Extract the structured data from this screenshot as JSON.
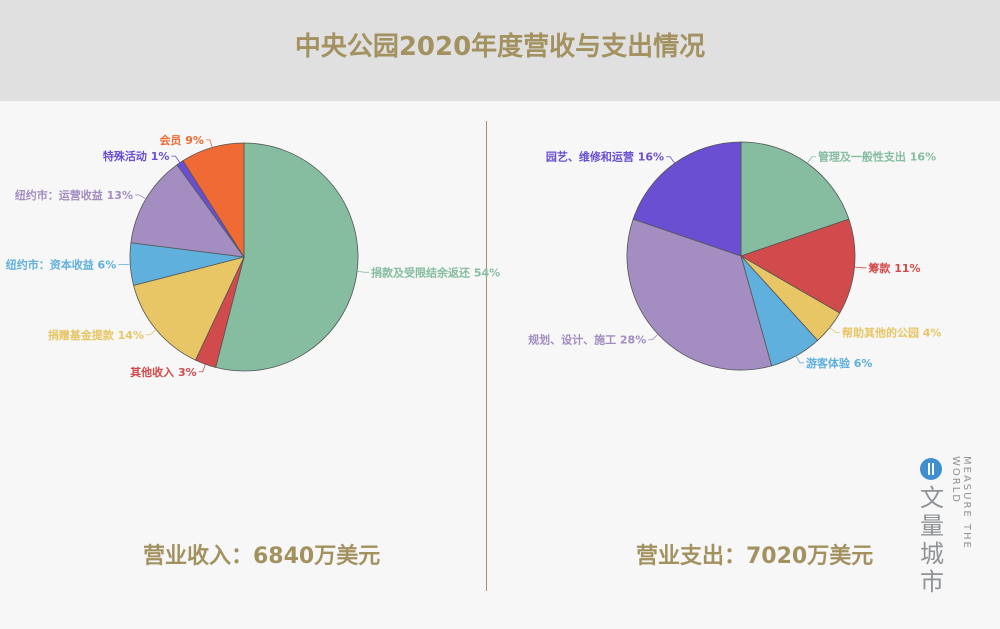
{
  "header": {
    "title": "中央公园2020年度营收与支出情况"
  },
  "chart_data": [
    {
      "type": "pie",
      "total_label": "营业收入：6840万美元",
      "slices": [
        {
          "label": "捐款及受限结余返还",
          "percent_label": "54%",
          "value": 54,
          "color": "#86bda0"
        },
        {
          "label": "其他收入",
          "percent_label": "3%",
          "value": 3,
          "color": "#d24b4c"
        },
        {
          "label": "捐赠基金提款",
          "percent_label": "14%",
          "value": 14,
          "color": "#e8c565"
        },
        {
          "label": "纽约市：资本收益",
          "percent_label": "6%",
          "value": 6,
          "color": "#5fb0dd"
        },
        {
          "label": "纽约市：运营收益",
          "percent_label": "13%",
          "value": 13,
          "color": "#a38dc1"
        },
        {
          "label": "特殊活动",
          "percent_label": "1%",
          "value": 1,
          "color": "#6a4fd3"
        },
        {
          "label": "会员",
          "percent_label": "9%",
          "value": 9,
          "color": "#f06a35"
        }
      ]
    },
    {
      "type": "pie",
      "total_label": "营业支出：7020万美元",
      "slices": [
        {
          "label": "管理及一般性支出",
          "percent_label": "16%",
          "value": 16,
          "color": "#86bda0"
        },
        {
          "label": "筹款",
          "percent_label": "11%",
          "value": 11,
          "color": "#d24b4c"
        },
        {
          "label": "帮助其他的公园",
          "percent_label": "4%",
          "value": 4,
          "color": "#e8c565"
        },
        {
          "label": "游客体验",
          "percent_label": "6%",
          "value": 6,
          "color": "#5fb0dd"
        },
        {
          "label": "规划、设计、施工",
          "percent_label": "28%",
          "value": 28,
          "color": "#a38dc1"
        },
        {
          "label": "园艺、维修和运营",
          "percent_label": "16%",
          "value": 16,
          "color": "#6a4fd3"
        }
      ]
    }
  ],
  "logo": {
    "name_cn": "文量城市",
    "name_en": "MEASURE THE WORLD"
  }
}
